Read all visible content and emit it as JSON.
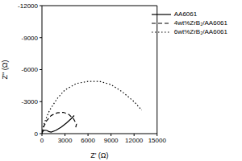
{
  "chart_data": {
    "type": "line",
    "x_label": "Z' (Ω)",
    "y_label": "Z'' (Ω)",
    "xlim": [
      0,
      15000
    ],
    "xticks": [
      0,
      3000,
      6000,
      9000,
      12000,
      15000
    ],
    "ylim": [
      0,
      -12000
    ],
    "yticks": [
      0,
      -3000,
      -6000,
      -9000,
      -12000
    ],
    "grid": false,
    "legend": "upper right",
    "series": [
      {
        "name": "AA6061",
        "color": "#000000",
        "line_style": "solid",
        "x": [
          0,
          100,
          300,
          600,
          900,
          1200,
          1800,
          2500,
          3200,
          3800,
          4200
        ],
        "values": [
          0,
          -200,
          -320,
          -300,
          -200,
          -150,
          -300,
          -600,
          -1000,
          -1400,
          -1700
        ]
      },
      {
        "name": "4wt%ZrB₂/AA6061",
        "color": "#000000",
        "line_style": "dashed",
        "x": [
          0,
          200,
          600,
          1200,
          2000,
          2800,
          3500,
          4100,
          4500,
          4400
        ],
        "values": [
          0,
          -600,
          -1200,
          -1700,
          -1950,
          -2000,
          -1800,
          -1400,
          -900,
          -600
        ]
      },
      {
        "name": "6wt%ZrB₂/AA6061",
        "color": "#000000",
        "line_style": "dotted",
        "x": [
          0,
          300,
          1000,
          2000,
          3000,
          4500,
          6000,
          7500,
          9000,
          10500,
          12000,
          13000
        ],
        "values": [
          0,
          -1000,
          -2200,
          -3300,
          -4100,
          -4700,
          -4900,
          -4900,
          -4600,
          -3900,
          -3000,
          -2200
        ]
      }
    ]
  }
}
